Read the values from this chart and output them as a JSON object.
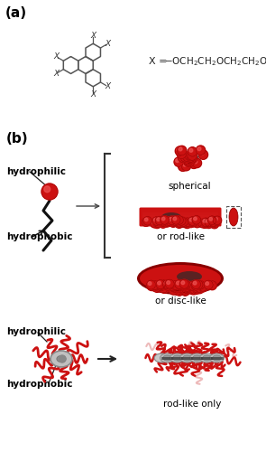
{
  "panel_a_label": "(a)",
  "panel_b_label": "(b)",
  "bg_color_a": "#ffffff",
  "bg_color_b": "#b8d4e8",
  "red_color": "#cc1111",
  "red_light": "#dd4444",
  "red_dark": "#880000",
  "grey_core": "#b0b0b0",
  "grey_dark": "#707070",
  "label_hydrophilic_top": "hydrophilic",
  "label_hydrophobic_top": "hydrophobic",
  "label_hydrophilic_bot": "hydrophilic",
  "label_hydrophobic_bot": "hydrophobic",
  "label_spherical": "spherical",
  "label_rod": "or rod-like",
  "label_disc": "or disc-like",
  "label_rod_only": "rod-like only",
  "fig_width": 2.95,
  "fig_height": 5.0,
  "dpi": 100
}
